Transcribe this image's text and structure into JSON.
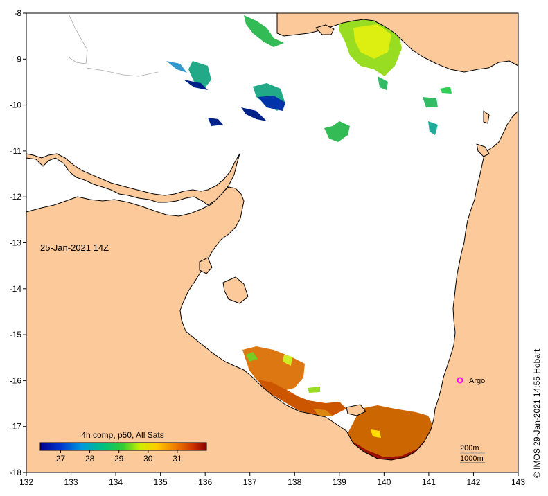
{
  "map": {
    "date_label": "25-Jan-2021 14Z",
    "x_ticks": [
      "132",
      "133",
      "134",
      "135",
      "136",
      "137",
      "138",
      "139",
      "140",
      "141",
      "142",
      "143"
    ],
    "y_ticks": [
      "-8",
      "-9",
      "-10",
      "-11",
      "-12",
      "-13",
      "-14",
      "-15",
      "-16",
      "-17",
      "-18"
    ],
    "colorbar": {
      "title": "4h comp, p50, All Sats",
      "ticks": [
        "27",
        "28",
        "29",
        "30",
        "31"
      ],
      "range": [
        26.3,
        32.0
      ]
    },
    "contour_legend": {
      "line1": "200m",
      "line2": "1000m"
    },
    "argo": {
      "label": "Argo",
      "lon": 141.7,
      "lat": -16.0,
      "color": "#ff00ff"
    },
    "credit": "© IMOS 29-Jan-2021 14:55 Hobart",
    "colors": {
      "land": "#fcc99b",
      "sea": "#ffffff",
      "coast": "#000000"
    }
  }
}
